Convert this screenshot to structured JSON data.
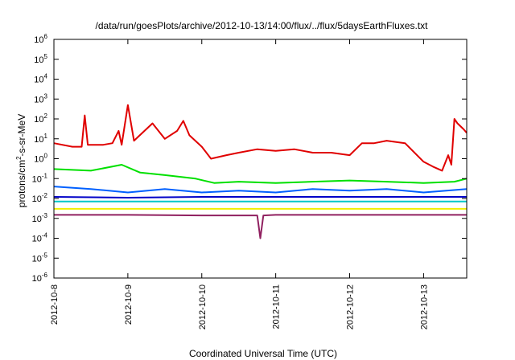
{
  "chart_data": {
    "type": "line",
    "title": "/data/run/goesPlots/archive/2012-10-13/14:00/flux/../flux/5daysEarthFluxes.txt",
    "xlabel": "Coordinated Universal Time (UTC)",
    "ylabel": {
      "base": "protons/cm",
      "sup": "2",
      "rest": "-s-sr-MeV"
    },
    "y_scale": "log",
    "ylim": [
      1e-06,
      1000000.0
    ],
    "y_ticks": [
      {
        "value": 1e-06,
        "base": "10",
        "exp": "-6"
      },
      {
        "value": 1e-05,
        "base": "10",
        "exp": "-5"
      },
      {
        "value": 0.0001,
        "base": "10",
        "exp": "-4"
      },
      {
        "value": 0.001,
        "base": "10",
        "exp": "-3"
      },
      {
        "value": 0.01,
        "base": "10",
        "exp": "-2"
      },
      {
        "value": 0.1,
        "base": "10",
        "exp": "-1"
      },
      {
        "value": 1,
        "base": "10",
        "exp": "0"
      },
      {
        "value": 10,
        "base": "10",
        "exp": "1"
      },
      {
        "value": 100,
        "base": "10",
        "exp": "2"
      },
      {
        "value": 1000,
        "base": "10",
        "exp": "3"
      },
      {
        "value": 10000,
        "base": "10",
        "exp": "4"
      },
      {
        "value": 100000,
        "base": "10",
        "exp": "5"
      },
      {
        "value": 1000000,
        "base": "10",
        "exp": "6"
      }
    ],
    "x_range": [
      "2012-10-08",
      "2012-10-13T14:00"
    ],
    "x_ticks": [
      "2012-10-8",
      "2012-10-9",
      "2012-10-10",
      "2012-10-11",
      "2012-10-12",
      "2012-10-13"
    ],
    "grid": false,
    "series": [
      {
        "color": "#e00000",
        "points": [
          [
            "2012-10-08T00:00",
            6
          ],
          [
            "2012-10-08T06:00",
            4
          ],
          [
            "2012-10-08T09:00",
            4
          ],
          [
            "2012-10-08T10:00",
            150
          ],
          [
            "2012-10-08T11:00",
            5
          ],
          [
            "2012-10-08T16:00",
            5
          ],
          [
            "2012-10-08T19:00",
            6
          ],
          [
            "2012-10-08T21:00",
            25
          ],
          [
            "2012-10-08T22:00",
            5
          ],
          [
            "2012-10-09T00:00",
            500
          ],
          [
            "2012-10-09T02:00",
            8
          ],
          [
            "2012-10-09T08:00",
            60
          ],
          [
            "2012-10-09T12:00",
            10
          ],
          [
            "2012-10-09T16:00",
            25
          ],
          [
            "2012-10-09T18:00",
            80
          ],
          [
            "2012-10-09T20:00",
            15
          ],
          [
            "2012-10-10T00:00",
            4
          ],
          [
            "2012-10-10T03:00",
            1
          ],
          [
            "2012-10-10T08:00",
            1.5
          ],
          [
            "2012-10-10T12:00",
            2
          ],
          [
            "2012-10-10T18:00",
            3
          ],
          [
            "2012-10-11T00:00",
            2.5
          ],
          [
            "2012-10-11T06:00",
            3
          ],
          [
            "2012-10-11T12:00",
            2
          ],
          [
            "2012-10-11T18:00",
            2
          ],
          [
            "2012-10-12T00:00",
            1.5
          ],
          [
            "2012-10-12T04:00",
            6
          ],
          [
            "2012-10-12T08:00",
            6
          ],
          [
            "2012-10-12T12:00",
            8
          ],
          [
            "2012-10-12T18:00",
            6
          ],
          [
            "2012-10-13T00:00",
            0.7
          ],
          [
            "2012-10-13T03:00",
            0.4
          ],
          [
            "2012-10-13T06:00",
            0.25
          ],
          [
            "2012-10-13T08:00",
            1.5
          ],
          [
            "2012-10-13T09:00",
            0.5
          ],
          [
            "2012-10-13T10:00",
            100
          ],
          [
            "2012-10-13T11:00",
            60
          ],
          [
            "2012-10-13T13:00",
            30
          ],
          [
            "2012-10-13T14:00",
            20
          ]
        ]
      },
      {
        "color": "#00e000",
        "points": [
          [
            "2012-10-08T00:00",
            0.3
          ],
          [
            "2012-10-08T12:00",
            0.25
          ],
          [
            "2012-10-08T22:00",
            0.5
          ],
          [
            "2012-10-09T04:00",
            0.2
          ],
          [
            "2012-10-09T12:00",
            0.15
          ],
          [
            "2012-10-09T22:00",
            0.1
          ],
          [
            "2012-10-10T04:00",
            0.06
          ],
          [
            "2012-10-10T12:00",
            0.07
          ],
          [
            "2012-10-11T00:00",
            0.06
          ],
          [
            "2012-10-11T12:00",
            0.07
          ],
          [
            "2012-10-12T00:00",
            0.08
          ],
          [
            "2012-10-12T12:00",
            0.07
          ],
          [
            "2012-10-13T00:00",
            0.06
          ],
          [
            "2012-10-13T10:00",
            0.07
          ],
          [
            "2012-10-13T14:00",
            0.1
          ]
        ]
      },
      {
        "color": "#0060ff",
        "points": [
          [
            "2012-10-08T00:00",
            0.04
          ],
          [
            "2012-10-08T12:00",
            0.03
          ],
          [
            "2012-10-09T00:00",
            0.02
          ],
          [
            "2012-10-09T12:00",
            0.03
          ],
          [
            "2012-10-10T00:00",
            0.02
          ],
          [
            "2012-10-10T12:00",
            0.025
          ],
          [
            "2012-10-11T00:00",
            0.02
          ],
          [
            "2012-10-11T12:00",
            0.03
          ],
          [
            "2012-10-12T00:00",
            0.025
          ],
          [
            "2012-10-12T12:00",
            0.03
          ],
          [
            "2012-10-13T00:00",
            0.02
          ],
          [
            "2012-10-13T14:00",
            0.03
          ]
        ]
      },
      {
        "color": "#0000c8",
        "points": [
          [
            "2012-10-08T00:00",
            0.012
          ],
          [
            "2012-10-09T00:00",
            0.011
          ],
          [
            "2012-10-10T00:00",
            0.012
          ],
          [
            "2012-10-11T00:00",
            0.012
          ],
          [
            "2012-10-12T00:00",
            0.012
          ],
          [
            "2012-10-13T00:00",
            0.012
          ],
          [
            "2012-10-13T14:00",
            0.012
          ]
        ]
      },
      {
        "color": "#00c8c8",
        "points": [
          [
            "2012-10-08T00:00",
            0.007
          ],
          [
            "2012-10-09T00:00",
            0.007
          ],
          [
            "2012-10-10T00:00",
            0.007
          ],
          [
            "2012-10-11T00:00",
            0.007
          ],
          [
            "2012-10-12T00:00",
            0.007
          ],
          [
            "2012-10-13T00:00",
            0.007
          ],
          [
            "2012-10-13T14:00",
            0.007
          ]
        ]
      },
      {
        "color": "#f0f000",
        "points": [
          [
            "2012-10-08T00:00",
            0.003
          ],
          [
            "2012-10-09T00:00",
            0.003
          ],
          [
            "2012-10-10T00:00",
            0.003
          ],
          [
            "2012-10-11T00:00",
            0.003
          ],
          [
            "2012-10-12T00:00",
            0.003
          ],
          [
            "2012-10-13T00:00",
            0.003
          ],
          [
            "2012-10-13T14:00",
            0.003
          ]
        ]
      },
      {
        "color": "#902060",
        "points": [
          [
            "2012-10-08T00:00",
            0.0015
          ],
          [
            "2012-10-09T00:00",
            0.0015
          ],
          [
            "2012-10-10T00:00",
            0.0014
          ],
          [
            "2012-10-10T18:00",
            0.0014
          ],
          [
            "2012-10-10T19:00",
            0.0001
          ],
          [
            "2012-10-10T20:00",
            0.0014
          ],
          [
            "2012-10-11T00:00",
            0.0015
          ],
          [
            "2012-10-12T00:00",
            0.0015
          ],
          [
            "2012-10-13T00:00",
            0.0015
          ],
          [
            "2012-10-13T14:00",
            0.0015
          ]
        ]
      }
    ]
  }
}
